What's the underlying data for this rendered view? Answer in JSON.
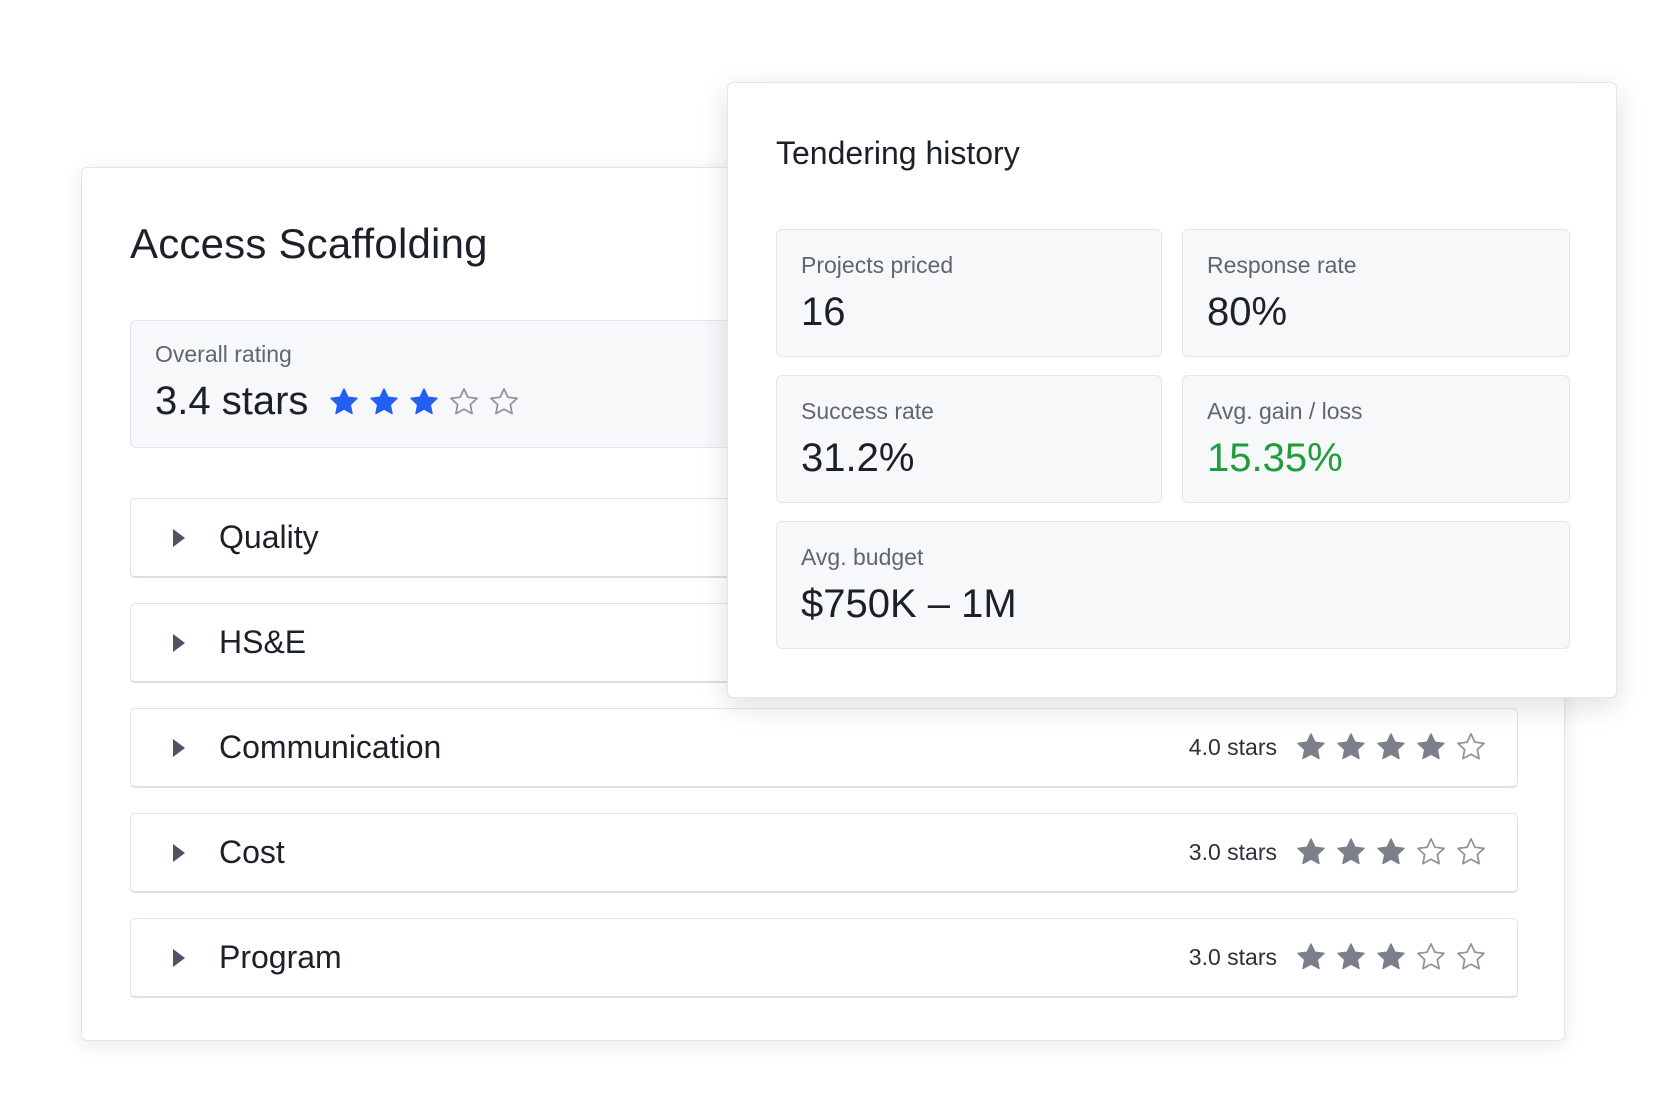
{
  "supplier": {
    "name": "Access Scaffolding",
    "overall": {
      "label": "Overall rating",
      "value_text": "3.4 stars",
      "stars_filled": 3,
      "stars_total": 5
    },
    "categories": [
      {
        "label": "Quality"
      },
      {
        "label": "HS&E"
      },
      {
        "label": "Communication",
        "rating_text": "4.0 stars",
        "stars_filled": 4,
        "stars_total": 5
      },
      {
        "label": "Cost",
        "rating_text": "3.0 stars",
        "stars_filled": 3,
        "stars_total": 5
      },
      {
        "label": "Program",
        "rating_text": "3.0 stars",
        "stars_filled": 3,
        "stars_total": 5
      }
    ]
  },
  "tendering_history": {
    "title": "Tendering history",
    "stats": {
      "projects_priced": {
        "label": "Projects priced",
        "value": "16"
      },
      "response_rate": {
        "label": "Response rate",
        "value": "80%"
      },
      "success_rate": {
        "label": "Success rate",
        "value": "31.2%"
      },
      "avg_gain_loss": {
        "label": "Avg. gain / loss",
        "value": "15.35%"
      },
      "avg_budget": {
        "label": "Avg. budget",
        "value": "$750K – 1M"
      }
    }
  },
  "icons": {
    "caret": "caret-right-icon",
    "star_filled": "star-filled-icon",
    "star_empty": "star-outline-icon"
  },
  "colors": {
    "overall_star": "#2160f3",
    "category_star": "#7a7f8b",
    "empty_star_stroke": "#8d929c",
    "positive_value": "#1f9d3a"
  }
}
